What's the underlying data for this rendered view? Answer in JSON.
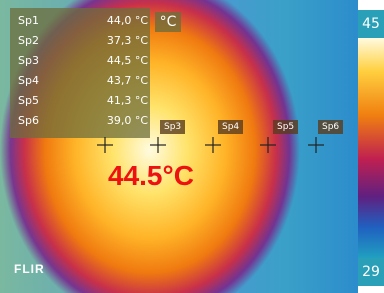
{
  "spots": [
    {
      "name": "Sp1",
      "value": "44,0 °C"
    },
    {
      "name": "Sp2",
      "value": "37,3 °C"
    },
    {
      "name": "Sp3",
      "value": "44,5 °C"
    },
    {
      "name": "Sp4",
      "value": "43,7 °C"
    },
    {
      "name": "Sp5",
      "value": "41,3 °C"
    },
    {
      "name": "Sp6",
      "value": "39,0 °C"
    }
  ],
  "unit": "°C",
  "scale": {
    "max": "45",
    "min": "29"
  },
  "markers": [
    "Sp3",
    "Sp4",
    "Sp5",
    "Sp6"
  ],
  "reading": "44.5°C",
  "logo": "FLIR"
}
